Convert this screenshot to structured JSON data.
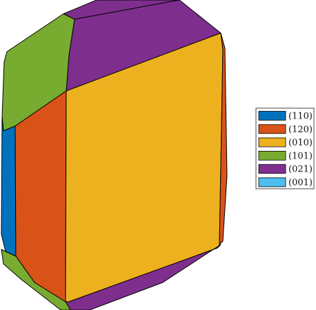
{
  "legend": {
    "items": [
      {
        "label": "(110)",
        "color": "#0072BD"
      },
      {
        "label": "(120)",
        "color": "#D95319"
      },
      {
        "label": "(010)",
        "color": "#EDB120"
      },
      {
        "label": "(101)",
        "color": "#77AC30"
      },
      {
        "label": "(021)",
        "color": "#7E2F8E"
      },
      {
        "label": "(001)",
        "color": "#4DBEEE"
      }
    ]
  }
}
